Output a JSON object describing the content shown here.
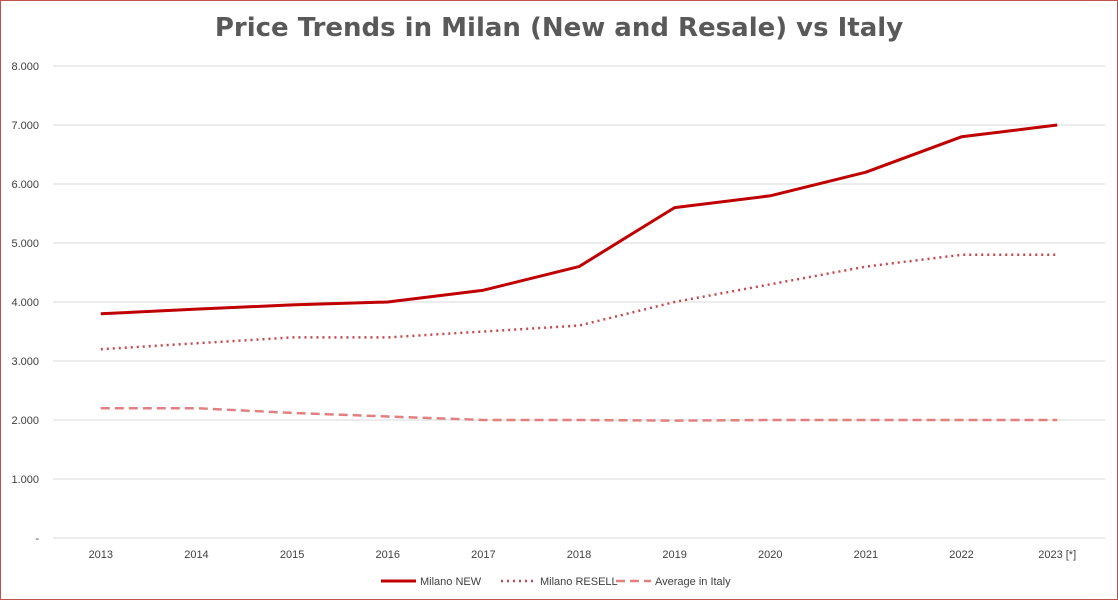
{
  "chart_data": {
    "type": "line",
    "title": "Price Trends in Milan (New and Resale) vs Italy",
    "xlabel": "",
    "ylabel": "",
    "categories": [
      "2013",
      "2014",
      "2015",
      "2016",
      "2017",
      "2018",
      "2019",
      "2020",
      "2021",
      "2022",
      "2023 [*]"
    ],
    "ylim": [
      0,
      8000
    ],
    "y_ticks": [
      {
        "value": 8000,
        "label": "8.000"
      },
      {
        "value": 7000,
        "label": "7.000"
      },
      {
        "value": 6000,
        "label": "6.000"
      },
      {
        "value": 5000,
        "label": "5.000"
      },
      {
        "value": 4000,
        "label": "4.000"
      },
      {
        "value": 3000,
        "label": "3.000"
      },
      {
        "value": 2000,
        "label": "2.000"
      },
      {
        "value": 1000,
        "label": "1.000"
      },
      {
        "value": 0,
        "label": "-"
      }
    ],
    "grid": true,
    "legend_position": "bottom",
    "series": [
      {
        "name": "Milano NEW",
        "style": "solid",
        "color": "#c00000",
        "values": [
          3800,
          3880,
          3950,
          4000,
          4200,
          4600,
          5600,
          5800,
          6200,
          6800,
          7000
        ]
      },
      {
        "name": "Milano RESELL",
        "style": "dotted",
        "color": "#c9454a",
        "values": [
          3200,
          3300,
          3400,
          3400,
          3500,
          3600,
          4000,
          4300,
          4600,
          4800,
          4800
        ]
      },
      {
        "name": "Average in Italy",
        "style": "dashed",
        "color": "#e08080",
        "values": [
          2200,
          2200,
          2120,
          2060,
          2000,
          2000,
          1990,
          2000,
          2000,
          2000,
          2000
        ]
      }
    ]
  }
}
